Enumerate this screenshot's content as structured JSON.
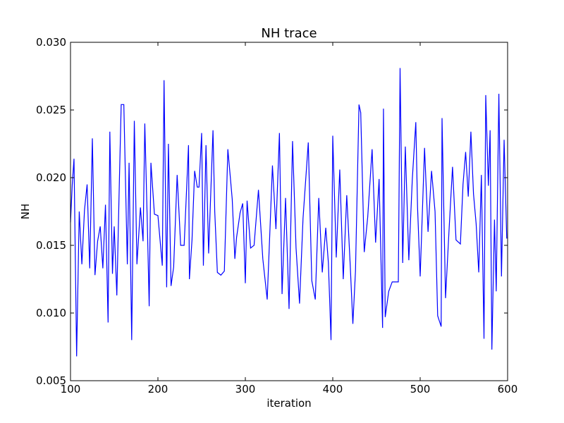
{
  "chart_data": {
    "type": "line",
    "title": "NH trace",
    "xlabel": "iteration",
    "ylabel": "NH",
    "xlim": [
      100,
      600
    ],
    "ylim": [
      0.005,
      0.03
    ],
    "xticks": [
      100,
      200,
      300,
      400,
      500,
      600
    ],
    "yticks": [
      0.005,
      {
        "value": 0.01,
        "label": "0.010"
      },
      0.015,
      {
        "value": 0.02,
        "label": "0.020"
      },
      0.025,
      {
        "value": 0.03,
        "label": "0.030"
      }
    ],
    "x": [
      100,
      102,
      104,
      107,
      110,
      113,
      116,
      119,
      122,
      125,
      128,
      131,
      134,
      137,
      140,
      143,
      145,
      148,
      150,
      153,
      156,
      158,
      161,
      165,
      167,
      170,
      173,
      176,
      180,
      183,
      185,
      188,
      190,
      192,
      196,
      200,
      205,
      207,
      210,
      212,
      215,
      218,
      222,
      226,
      230,
      235,
      236,
      239,
      242,
      245,
      247,
      250,
      252,
      255,
      258,
      263,
      265,
      268,
      272,
      276,
      280,
      283,
      285,
      288,
      290,
      294,
      297,
      300,
      302,
      306,
      310,
      315,
      320,
      325,
      328,
      331,
      335,
      339,
      342,
      346,
      350,
      354,
      358,
      362,
      366,
      372,
      376,
      380,
      384,
      388,
      392,
      395,
      398,
      400,
      404,
      408,
      412,
      416,
      420,
      423,
      426,
      430,
      432,
      436,
      440,
      445,
      449,
      453,
      457,
      458,
      460,
      464,
      468,
      472,
      475,
      477,
      480,
      483,
      487,
      491,
      495,
      497,
      500,
      505,
      509,
      513,
      517,
      520,
      524,
      525,
      529,
      533,
      537,
      541,
      546,
      549,
      552,
      555,
      558,
      561,
      564,
      567,
      570,
      573,
      575,
      578,
      580,
      582,
      585,
      587,
      590,
      593,
      596,
      599
    ],
    "series": [
      {
        "name": "NH",
        "color": "#0000ff",
        "values": [
          0.0167,
          0.0195,
          0.0214,
          0.0068,
          0.0175,
          0.0136,
          0.0176,
          0.0195,
          0.0133,
          0.0229,
          0.0128,
          0.0153,
          0.0164,
          0.0133,
          0.018,
          0.0093,
          0.0234,
          0.0129,
          0.0164,
          0.0113,
          0.02,
          0.0254,
          0.0254,
          0.0136,
          0.0211,
          0.008,
          0.0242,
          0.0136,
          0.0178,
          0.0153,
          0.024,
          0.0163,
          0.0105,
          0.0211,
          0.0173,
          0.0172,
          0.0135,
          0.0272,
          0.0119,
          0.0225,
          0.012,
          0.0134,
          0.0202,
          0.015,
          0.015,
          0.0224,
          0.0125,
          0.0154,
          0.0205,
          0.0193,
          0.0193,
          0.0233,
          0.0135,
          0.0224,
          0.0144,
          0.0235,
          0.0175,
          0.013,
          0.0128,
          0.0131,
          0.0221,
          0.0199,
          0.0184,
          0.014,
          0.0156,
          0.0174,
          0.0181,
          0.0122,
          0.0183,
          0.0148,
          0.015,
          0.0191,
          0.014,
          0.011,
          0.0159,
          0.0209,
          0.0162,
          0.0233,
          0.0114,
          0.0185,
          0.0103,
          0.0227,
          0.0148,
          0.0107,
          0.017,
          0.0226,
          0.0124,
          0.011,
          0.0185,
          0.013,
          0.0163,
          0.0137,
          0.008,
          0.0231,
          0.0141,
          0.0206,
          0.0125,
          0.0187,
          0.0135,
          0.0092,
          0.0131,
          0.0254,
          0.0248,
          0.0145,
          0.0171,
          0.0221,
          0.0152,
          0.0199,
          0.0089,
          0.0251,
          0.0097,
          0.0116,
          0.0123,
          0.0123,
          0.0123,
          0.0281,
          0.0137,
          0.0223,
          0.0139,
          0.0199,
          0.0241,
          0.0178,
          0.0127,
          0.0222,
          0.016,
          0.0205,
          0.0175,
          0.0098,
          0.009,
          0.0244,
          0.0111,
          0.0161,
          0.0208,
          0.0154,
          0.0151,
          0.0195,
          0.0219,
          0.0186,
          0.0234,
          0.0188,
          0.0166,
          0.013,
          0.0202,
          0.0081,
          0.0261,
          0.0194,
          0.0235,
          0.0073,
          0.0169,
          0.0116,
          0.0262,
          0.0127,
          0.0228,
          0.0155
        ]
      }
    ]
  }
}
